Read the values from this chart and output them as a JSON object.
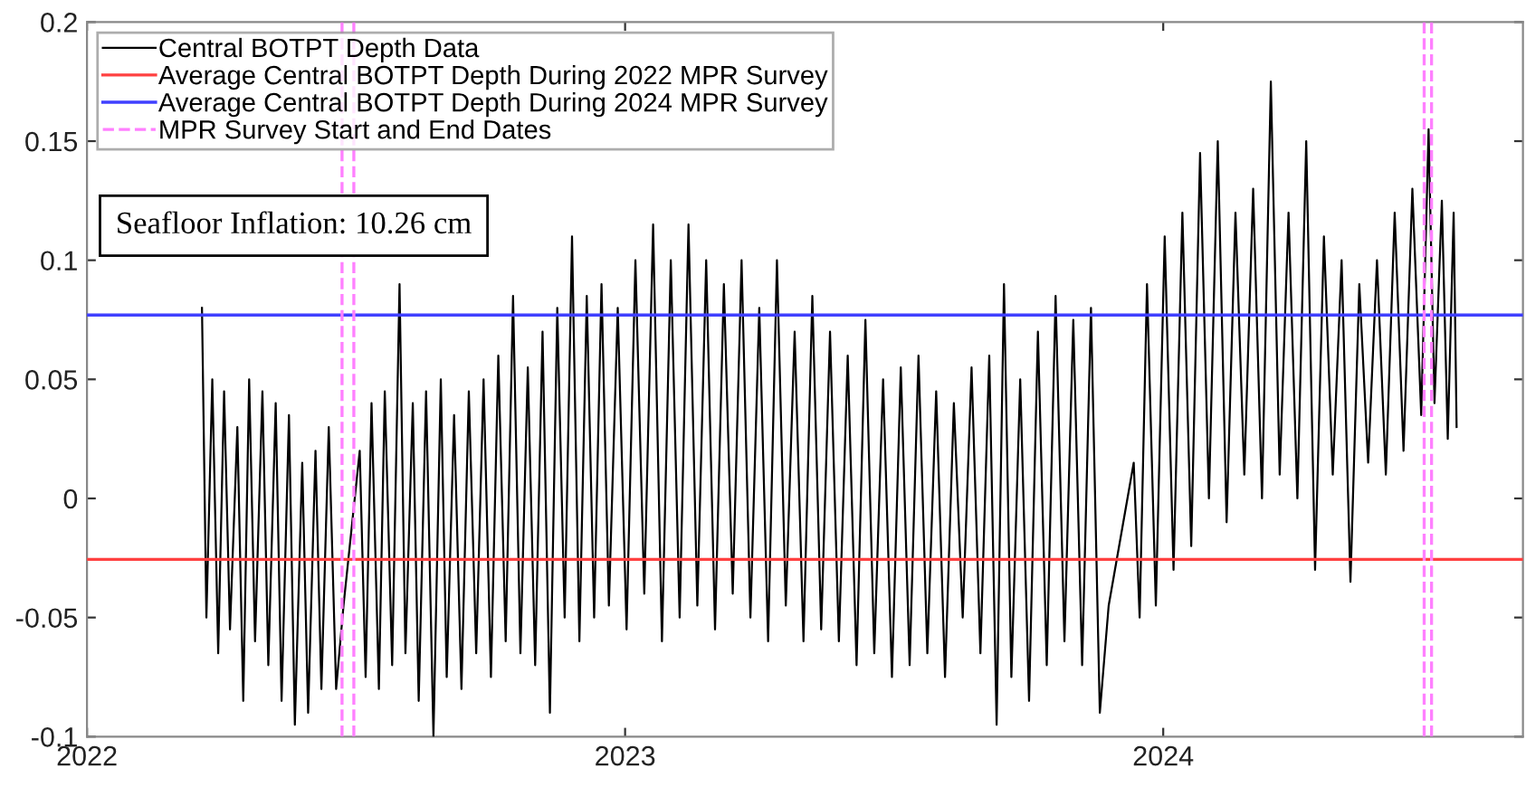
{
  "chart_data": {
    "type": "line",
    "x": [
      "2022-03-20",
      "2022-03-23",
      "2022-03-27",
      "2022-03-31",
      "2022-04-04",
      "2022-04-08",
      "2022-04-13",
      "2022-04-17",
      "2022-04-21",
      "2022-04-25",
      "2022-04-30",
      "2022-05-04",
      "2022-05-09",
      "2022-05-13",
      "2022-05-18",
      "2022-05-22",
      "2022-05-27",
      "2022-05-31",
      "2022-06-05",
      "2022-06-09",
      "2022-06-14",
      "2022-06-19",
      "2022-06-24",
      "2022-07-05",
      "2022-07-09",
      "2022-07-13",
      "2022-07-18",
      "2022-07-22",
      "2022-07-27",
      "2022-08-01",
      "2022-08-05",
      "2022-08-10",
      "2022-08-14",
      "2022-08-19",
      "2022-08-24",
      "2022-08-29",
      "2022-09-02",
      "2022-09-07",
      "2022-09-12",
      "2022-09-17",
      "2022-09-22",
      "2022-09-27",
      "2022-10-02",
      "2022-10-07",
      "2022-10-12",
      "2022-10-17",
      "2022-10-22",
      "2022-10-27",
      "2022-11-01",
      "2022-11-06",
      "2022-11-11",
      "2022-11-16",
      "2022-11-21",
      "2022-11-26",
      "2022-12-01",
      "2022-12-06",
      "2022-12-11",
      "2022-12-16",
      "2022-12-21",
      "2022-12-27",
      "2023-01-02",
      "2023-01-08",
      "2023-01-14",
      "2023-01-20",
      "2023-01-26",
      "2023-02-01",
      "2023-02-07",
      "2023-02-13",
      "2023-02-19",
      "2023-02-25",
      "2023-03-03",
      "2023-03-09",
      "2023-03-15",
      "2023-03-21",
      "2023-03-27",
      "2023-04-02",
      "2023-04-08",
      "2023-04-14",
      "2023-04-20",
      "2023-04-26",
      "2023-05-02",
      "2023-05-08",
      "2023-05-14",
      "2023-05-20",
      "2023-05-26",
      "2023-06-01",
      "2023-06-07",
      "2023-06-13",
      "2023-06-19",
      "2023-06-25",
      "2023-07-01",
      "2023-07-07",
      "2023-07-13",
      "2023-07-19",
      "2023-07-25",
      "2023-07-31",
      "2023-08-06",
      "2023-08-12",
      "2023-08-18",
      "2023-08-24",
      "2023-08-30",
      "2023-09-05",
      "2023-09-10",
      "2023-09-15",
      "2023-09-20",
      "2023-09-26",
      "2023-10-02",
      "2023-10-08",
      "2023-10-14",
      "2023-10-20",
      "2023-10-26",
      "2023-11-01",
      "2023-11-07",
      "2023-11-13",
      "2023-11-19",
      "2023-11-25",
      "2023-12-12",
      "2023-12-16",
      "2023-12-21",
      "2023-12-27",
      "2024-01-02",
      "2024-01-08",
      "2024-01-14",
      "2024-01-20",
      "2024-01-26",
      "2024-02-01",
      "2024-02-07",
      "2024-02-13",
      "2024-02-19",
      "2024-02-25",
      "2024-03-02",
      "2024-03-08",
      "2024-03-14",
      "2024-03-20",
      "2024-03-26",
      "2024-04-01",
      "2024-04-07",
      "2024-04-13",
      "2024-04-19",
      "2024-04-25",
      "2024-05-01",
      "2024-05-07",
      "2024-05-13",
      "2024-05-19",
      "2024-05-25",
      "2024-05-31",
      "2024-06-06",
      "2024-06-12",
      "2024-06-18",
      "2024-06-24",
      "2024-06-29",
      "2024-07-03",
      "2024-07-08",
      "2024-07-12",
      "2024-07-16",
      "2024-07-18"
    ],
    "series": [
      {
        "name": "Central BOTPT Depth Data",
        "color": "#000000",
        "values": [
          0.08,
          -0.05,
          0.05,
          -0.065,
          0.045,
          -0.055,
          0.03,
          -0.085,
          0.05,
          -0.06,
          0.045,
          -0.07,
          0.04,
          -0.085,
          0.035,
          -0.095,
          0.015,
          -0.09,
          0.02,
          -0.08,
          0.03,
          -0.08,
          -0.045,
          0.02,
          -0.075,
          0.04,
          -0.08,
          0.045,
          -0.07,
          0.09,
          -0.065,
          0.04,
          -0.085,
          0.045,
          -0.1,
          0.05,
          -0.075,
          0.035,
          -0.08,
          0.045,
          -0.065,
          0.05,
          -0.075,
          0.06,
          -0.06,
          0.085,
          -0.065,
          0.055,
          -0.07,
          0.07,
          -0.09,
          0.08,
          -0.05,
          0.11,
          -0.06,
          0.085,
          -0.05,
          0.09,
          -0.045,
          0.08,
          -0.055,
          0.1,
          -0.04,
          0.115,
          -0.06,
          0.1,
          -0.05,
          0.115,
          -0.045,
          0.1,
          -0.055,
          0.09,
          -0.04,
          0.1,
          -0.05,
          0.08,
          -0.06,
          0.1,
          -0.045,
          0.07,
          -0.06,
          0.085,
          -0.055,
          0.07,
          -0.06,
          0.06,
          -0.07,
          0.075,
          -0.065,
          0.05,
          -0.075,
          0.055,
          -0.07,
          0.06,
          -0.065,
          0.045,
          -0.075,
          0.04,
          -0.05,
          0.055,
          -0.065,
          0.06,
          -0.095,
          0.09,
          -0.075,
          0.05,
          -0.085,
          0.07,
          -0.07,
          0.085,
          -0.06,
          0.075,
          -0.07,
          0.08,
          -0.09,
          -0.045,
          0.015,
          -0.05,
          0.09,
          -0.045,
          0.11,
          -0.03,
          0.12,
          -0.02,
          0.145,
          0.0,
          0.15,
          -0.01,
          0.12,
          0.01,
          0.13,
          0.0,
          0.175,
          0.01,
          0.12,
          0.0,
          0.15,
          -0.03,
          0.11,
          0.01,
          0.1,
          -0.035,
          0.09,
          0.015,
          0.1,
          0.01,
          0.12,
          0.02,
          0.13,
          0.035,
          0.155,
          0.04,
          0.125,
          0.025,
          0.12,
          0.03
        ]
      }
    ],
    "ref_lines": [
      {
        "axis": "y",
        "value": -0.0256,
        "label": "Average Central BOTPT Depth During 2022 MPR Survey",
        "color": "#ff4040",
        "line_style": "solid"
      },
      {
        "axis": "y",
        "value": 0.077,
        "label": "Average Central BOTPT Depth During 2024 MPR Survey",
        "color": "#4040ff",
        "line_style": "solid"
      },
      {
        "axis": "x",
        "value": "2022-06-23",
        "label": "MPR Survey Start and End Dates",
        "color": "#ff80ff",
        "line_style": "dashed"
      },
      {
        "axis": "x",
        "value": "2022-07-01",
        "color": "#ff80ff",
        "line_style": "dashed"
      },
      {
        "axis": "x",
        "value": "2024-06-26",
        "color": "#ff80ff",
        "line_style": "dashed"
      },
      {
        "axis": "x",
        "value": "2024-07-01",
        "color": "#ff80ff",
        "line_style": "dashed"
      }
    ],
    "annotations": [
      "Seafloor Inflation: 10.26 cm"
    ],
    "xlim": [
      "2022-01-01",
      "2024-09-01"
    ],
    "xticks": [
      {
        "value": "2022-01-01",
        "label": "2022"
      },
      {
        "value": "2023-01-01",
        "label": "2023"
      },
      {
        "value": "2024-01-01",
        "label": "2024"
      }
    ],
    "ylim": [
      -0.1,
      0.2
    ],
    "yticks": [
      -0.1,
      -0.05,
      0,
      0.05,
      0.1,
      0.15,
      0.2
    ],
    "legend": "top left",
    "grid": false,
    "marker": "none",
    "line_style": "solid"
  }
}
